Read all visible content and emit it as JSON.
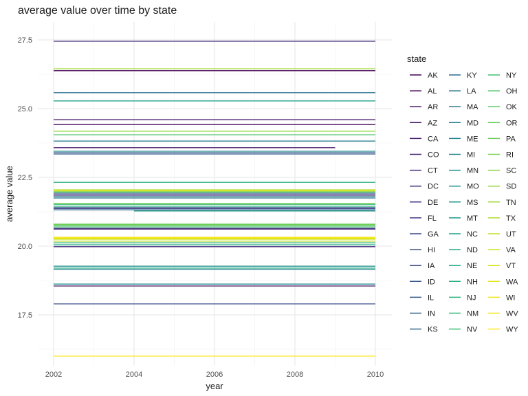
{
  "chart_data": {
    "type": "line",
    "title": "average value over time by state",
    "xlabel": "year",
    "ylabel": "average value",
    "xlim": [
      2002,
      2010
    ],
    "ylim": [
      15.9,
      27.9
    ],
    "x_ticks": [
      2002,
      2004,
      2006,
      2008,
      2010
    ],
    "y_ticks": [
      17.5,
      20.0,
      22.5,
      25.0,
      27.5
    ],
    "grid": true,
    "legend": {
      "title": "state",
      "placement": "right",
      "columns": 3
    },
    "series": [
      {
        "name": "AK",
        "color": "#440154",
        "x": [
          2002,
          2010
        ],
        "y": [
          26.38,
          26.38
        ]
      },
      {
        "name": "AL",
        "color": "#450a5c",
        "x": [
          2002,
          2010
        ],
        "y": [
          24.42,
          24.42
        ]
      },
      {
        "name": "AR",
        "color": "#471163",
        "x": [
          2002,
          2010
        ],
        "y": [
          18.55,
          18.55
        ]
      },
      {
        "name": "AZ",
        "color": "#481769",
        "x": [
          2002,
          2010
        ],
        "y": [
          24.6,
          24.6
        ]
      },
      {
        "name": "CA",
        "color": "#481d6f",
        "x": [
          2002,
          2009
        ],
        "y": [
          23.58,
          23.58
        ]
      },
      {
        "name": "CO",
        "color": "#482374",
        "x": [
          2002,
          2010
        ],
        "y": [
          20.62,
          20.62
        ]
      },
      {
        "name": "CT",
        "color": "#472a7a",
        "x": [
          2002,
          2010
        ],
        "y": [
          19.98,
          19.98
        ]
      },
      {
        "name": "DC",
        "color": "#46307e",
        "x": [
          2002,
          2010
        ],
        "y": [
          27.45,
          27.45
        ]
      },
      {
        "name": "DE",
        "color": "#453581",
        "x": [
          2002,
          2010
        ],
        "y": [
          21.85,
          21.85
        ]
      },
      {
        "name": "FL",
        "color": "#433c84",
        "x": [
          2002,
          2010
        ],
        "y": [
          21.37,
          21.37
        ]
      },
      {
        "name": "GA",
        "color": "#414287",
        "x": [
          2002,
          2010
        ],
        "y": [
          20.65,
          20.65
        ]
      },
      {
        "name": "HI",
        "color": "#3f4788",
        "x": [
          2002,
          2010
        ],
        "y": [
          21.9,
          21.9
        ]
      },
      {
        "name": "IA",
        "color": "#3c4d8a",
        "x": [
          2002,
          2010
        ],
        "y": [
          17.9,
          17.9
        ]
      },
      {
        "name": "ID",
        "color": "#39558c",
        "x": [
          2002,
          2010
        ],
        "y": [
          21.4,
          21.4
        ]
      },
      {
        "name": "IL",
        "color": "#365c8d",
        "x": [
          2002,
          2010
        ],
        "y": [
          23.35,
          23.35
        ]
      },
      {
        "name": "IN",
        "color": "#33628d",
        "x": [
          2002,
          2010
        ],
        "y": [
          23.4,
          23.4
        ]
      },
      {
        "name": "KS",
        "color": "#31688e",
        "x": [
          2002,
          2010
        ],
        "y": [
          21.32,
          21.32
        ]
      },
      {
        "name": "KY",
        "color": "#2e6d8e",
        "x": [
          2002,
          2010
        ],
        "y": [
          21.8,
          21.8
        ]
      },
      {
        "name": "LA",
        "color": "#2c738e",
        "x": [
          2002,
          2010
        ],
        "y": [
          25.58,
          25.58
        ]
      },
      {
        "name": "MA",
        "color": "#2a788e",
        "x": [
          2002,
          2010
        ],
        "y": [
          21.75,
          21.75
        ]
      },
      {
        "name": "MD",
        "color": "#287d8e",
        "x": [
          2002,
          2010
        ],
        "y": [
          23.82,
          23.82
        ]
      },
      {
        "name": "ME",
        "color": "#26828e",
        "x": [
          2002,
          2010
        ],
        "y": [
          19.15,
          19.15
        ]
      },
      {
        "name": "MI",
        "color": "#24868e",
        "x": [
          2002,
          2010
        ],
        "y": [
          23.45,
          23.45
        ]
      },
      {
        "name": "MN",
        "color": "#228c8d",
        "x": [
          2002,
          2010
        ],
        "y": [
          18.62,
          18.62
        ]
      },
      {
        "name": "MO",
        "color": "#21918c",
        "x": [
          2002,
          2010
        ],
        "y": [
          19.27,
          19.27
        ]
      },
      {
        "name": "MS",
        "color": "#1f968b",
        "x": [
          2002,
          2010
        ],
        "y": [
          21.95,
          21.95
        ]
      },
      {
        "name": "MT",
        "color": "#1f9a8a",
        "x": [
          2004,
          2010
        ],
        "y": [
          21.28,
          21.28
        ]
      },
      {
        "name": "NC",
        "color": "#1fa088",
        "x": [
          2002,
          2010
        ],
        "y": [
          25.28,
          25.28
        ]
      },
      {
        "name": "ND",
        "color": "#21a585",
        "x": [
          2002,
          2010
        ],
        "y": [
          19.2,
          19.2
        ]
      },
      {
        "name": "NE",
        "color": "#24aa83",
        "x": [
          2002,
          2010
        ],
        "y": [
          20.05,
          20.05
        ]
      },
      {
        "name": "NH",
        "color": "#28ae80",
        "x": [
          2002,
          2010
        ],
        "y": [
          21.45,
          21.45
        ]
      },
      {
        "name": "NJ",
        "color": "#2db27d",
        "x": [
          2002,
          2010
        ],
        "y": [
          22.32,
          22.32
        ]
      },
      {
        "name": "NM",
        "color": "#35b779",
        "x": [
          2002,
          2010
        ],
        "y": [
          20.12,
          20.12
        ]
      },
      {
        "name": "NV",
        "color": "#3dbc74",
        "x": [
          2002,
          2010
        ],
        "y": [
          21.52,
          21.52
        ]
      },
      {
        "name": "NY",
        "color": "#46c06f",
        "x": [
          2002,
          2010
        ],
        "y": [
          20.7,
          20.7
        ]
      },
      {
        "name": "OH",
        "color": "#50c46a",
        "x": [
          2002,
          2010
        ],
        "y": [
          24.05,
          24.05
        ]
      },
      {
        "name": "OK",
        "color": "#5ac864",
        "x": [
          2002,
          2010
        ],
        "y": [
          20.75,
          20.75
        ]
      },
      {
        "name": "OR",
        "color": "#65cb5e",
        "x": [
          2002,
          2010
        ],
        "y": [
          20.8,
          20.8
        ]
      },
      {
        "name": "PA",
        "color": "#70cf57",
        "x": [
          2002,
          2010
        ],
        "y": [
          20.78,
          20.78
        ]
      },
      {
        "name": "RI",
        "color": "#7cd250",
        "x": [
          2002,
          2010
        ],
        "y": [
          21.55,
          21.55
        ]
      },
      {
        "name": "SC",
        "color": "#89d548",
        "x": [
          2002,
          2010
        ],
        "y": [
          21.98,
          21.98
        ]
      },
      {
        "name": "SD",
        "color": "#95d840",
        "x": [
          2002,
          2010
        ],
        "y": [
          24.18,
          24.18
        ]
      },
      {
        "name": "TN",
        "color": "#a2da37",
        "x": [
          2002,
          2010
        ],
        "y": [
          26.45,
          26.45
        ]
      },
      {
        "name": "TX",
        "color": "#b0dd2f",
        "x": [
          2002,
          2010
        ],
        "y": [
          22.05,
          22.05
        ]
      },
      {
        "name": "UT",
        "color": "#bddf26",
        "x": [
          2002,
          2010
        ],
        "y": [
          20.18,
          20.18
        ]
      },
      {
        "name": "VA",
        "color": "#cae11f",
        "x": [
          2002,
          2010
        ],
        "y": [
          20.25,
          20.25
        ]
      },
      {
        "name": "VT",
        "color": "#d8e219",
        "x": [
          2002,
          2010
        ],
        "y": [
          22.02,
          22.02
        ]
      },
      {
        "name": "WA",
        "color": "#e5e419",
        "x": [
          2002,
          2010
        ],
        "y": [
          20.28,
          20.28
        ]
      },
      {
        "name": "WI",
        "color": "#f1e51d",
        "x": [
          2002,
          2010
        ],
        "y": [
          20.3,
          20.3
        ]
      },
      {
        "name": "WV",
        "color": "#f4e61e",
        "x": [
          2002,
          2010
        ],
        "y": [
          20.32,
          20.32
        ]
      },
      {
        "name": "WY",
        "color": "#fde725",
        "x": [
          2002,
          2010
        ],
        "y": [
          16.0,
          16.0
        ]
      }
    ]
  }
}
